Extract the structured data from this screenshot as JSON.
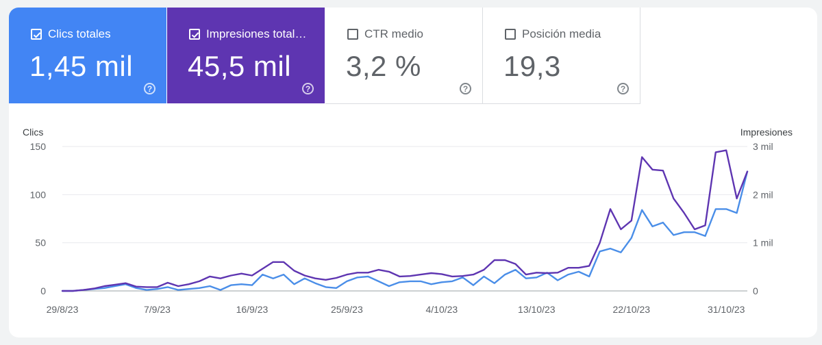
{
  "metrics": [
    {
      "label": "Clics totales",
      "value": "1,45 mil",
      "checked": true
    },
    {
      "label": "Impresiones total…",
      "value": "45,5 mil",
      "checked": true
    },
    {
      "label": "CTR medio",
      "value": "3,2 %",
      "checked": false
    },
    {
      "label": "Posición media",
      "value": "19,3",
      "checked": false
    }
  ],
  "help_glyph": "?",
  "colors": {
    "clicks": "#4a8ee8",
    "impressions": "#5e35b1",
    "grid": "#e8eaed"
  },
  "chart_data": {
    "type": "line",
    "y_left_label": "Clics",
    "y_right_label": "Impresiones",
    "ylim_left": [
      0,
      150
    ],
    "ylim_right": [
      0,
      3000
    ],
    "left_ticks": [
      {
        "v": 0,
        "label": "0"
      },
      {
        "v": 50,
        "label": "50"
      },
      {
        "v": 100,
        "label": "100"
      },
      {
        "v": 150,
        "label": "150"
      }
    ],
    "right_ticks": [
      {
        "v": 0,
        "label": "0"
      },
      {
        "v": 1000,
        "label": "1 mil"
      },
      {
        "v": 2000,
        "label": "2 mil"
      },
      {
        "v": 3000,
        "label": "3 mil"
      }
    ],
    "x_ticks": [
      {
        "i": 0,
        "label": "29/8/23"
      },
      {
        "i": 9,
        "label": "7/9/23"
      },
      {
        "i": 18,
        "label": "16/9/23"
      },
      {
        "i": 27,
        "label": "25/9/23"
      },
      {
        "i": 36,
        "label": "4/10/23"
      },
      {
        "i": 45,
        "label": "13/10/23"
      },
      {
        "i": 54,
        "label": "22/10/23"
      },
      {
        "i": 63,
        "label": "31/10/23"
      }
    ],
    "series": [
      {
        "name": "Clics",
        "axis": "left",
        "values": [
          0,
          0,
          1,
          2,
          3,
          5,
          7,
          3,
          1,
          2,
          4,
          1,
          2,
          3,
          5,
          1,
          6,
          7,
          6,
          17,
          13,
          17,
          7,
          13,
          8,
          4,
          3,
          10,
          14,
          15,
          10,
          5,
          9,
          10,
          10,
          7,
          9,
          10,
          14,
          6,
          15,
          8,
          17,
          22,
          13,
          14,
          19,
          11,
          17,
          20,
          15,
          41,
          44,
          40,
          55,
          84,
          67,
          71,
          58,
          61,
          61,
          57,
          85,
          85,
          81,
          124
        ]
      },
      {
        "name": "Impresiones",
        "axis": "right",
        "values": [
          0,
          0,
          20,
          50,
          100,
          130,
          160,
          90,
          80,
          80,
          170,
          100,
          140,
          200,
          300,
          260,
          320,
          360,
          320,
          460,
          600,
          600,
          420,
          320,
          260,
          230,
          270,
          340,
          380,
          380,
          440,
          400,
          300,
          310,
          340,
          370,
          350,
          300,
          310,
          340,
          440,
          640,
          640,
          560,
          340,
          380,
          370,
          380,
          480,
          480,
          520,
          1000,
          1700,
          1280,
          1460,
          2780,
          2520,
          2500,
          1920,
          1620,
          1280,
          1360,
          2880,
          2920,
          1920,
          2480
        ]
      }
    ]
  }
}
